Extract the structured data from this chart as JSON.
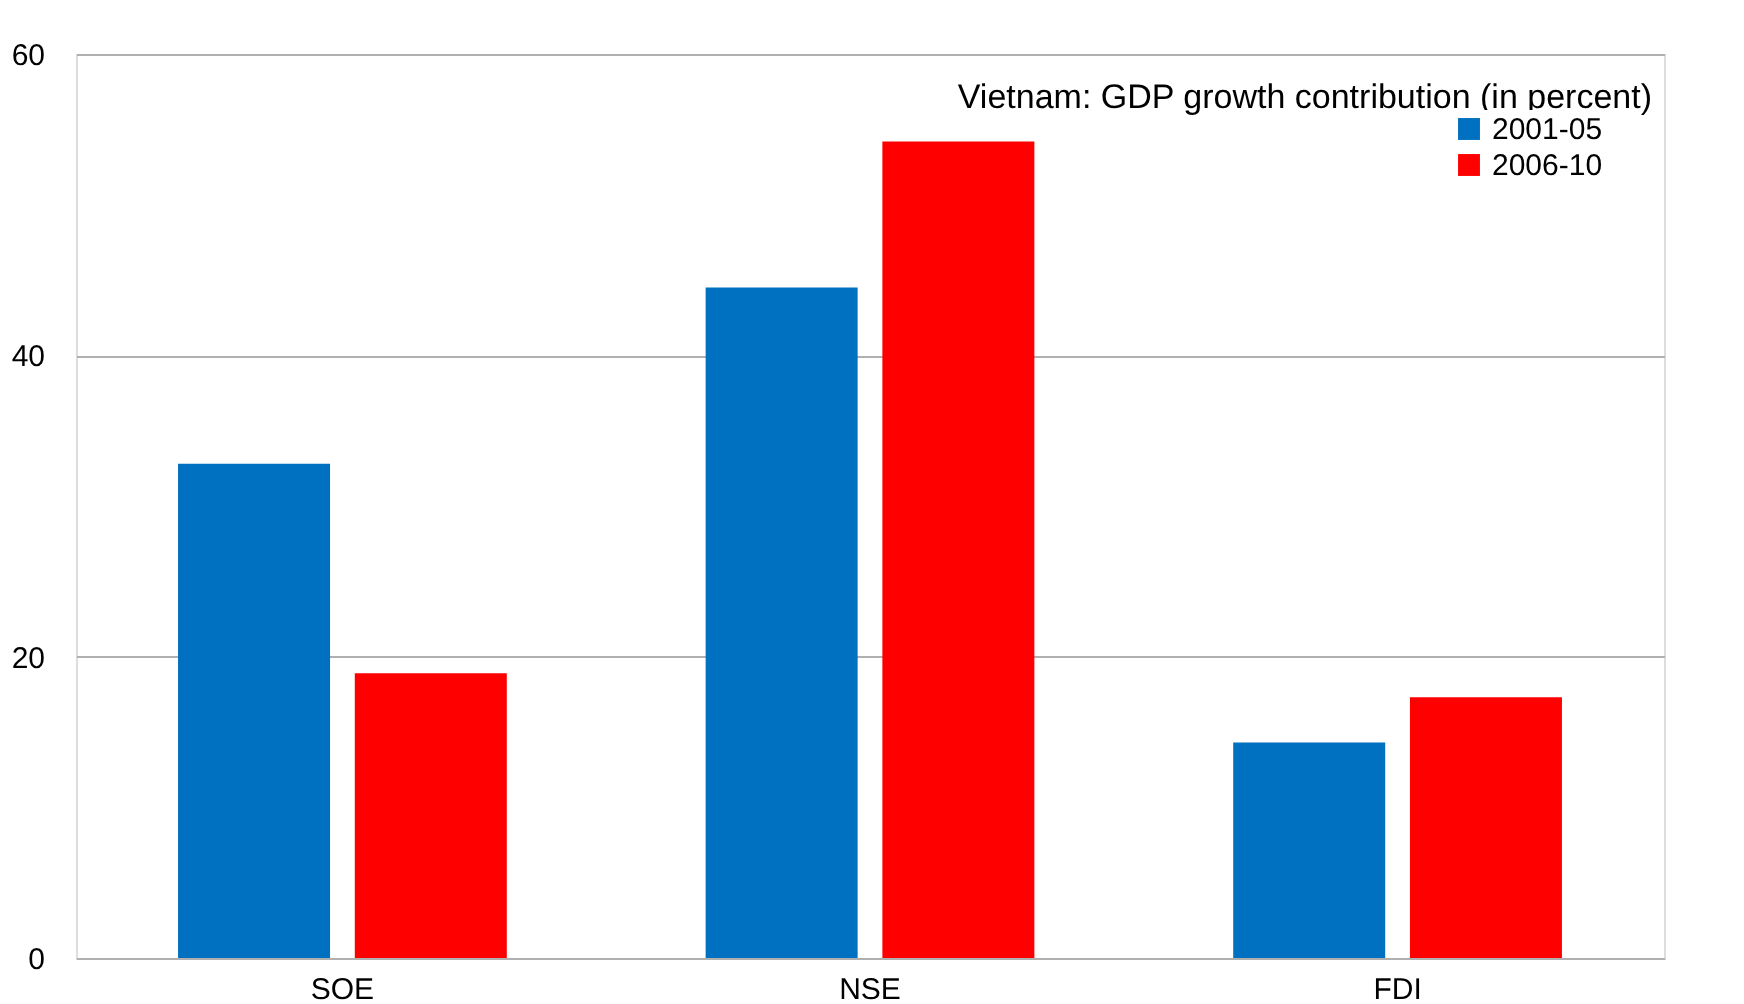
{
  "chart_data": {
    "type": "bar",
    "title": "Vietnam: GDP growth contribution (in percent)",
    "categories": [
      "SOE",
      "NSE",
      "FDI"
    ],
    "series": [
      {
        "name": "2001-05",
        "color": "#0070c0",
        "values": [
          32.8,
          44.5,
          14.3
        ]
      },
      {
        "name": "2006-10",
        "color": "#ff0000",
        "values": [
          18.9,
          54.2,
          17.3
        ]
      }
    ],
    "ylim": [
      0,
      60
    ],
    "yticks": [
      0,
      20,
      40,
      60
    ],
    "grid": "y",
    "legend": "top right"
  }
}
